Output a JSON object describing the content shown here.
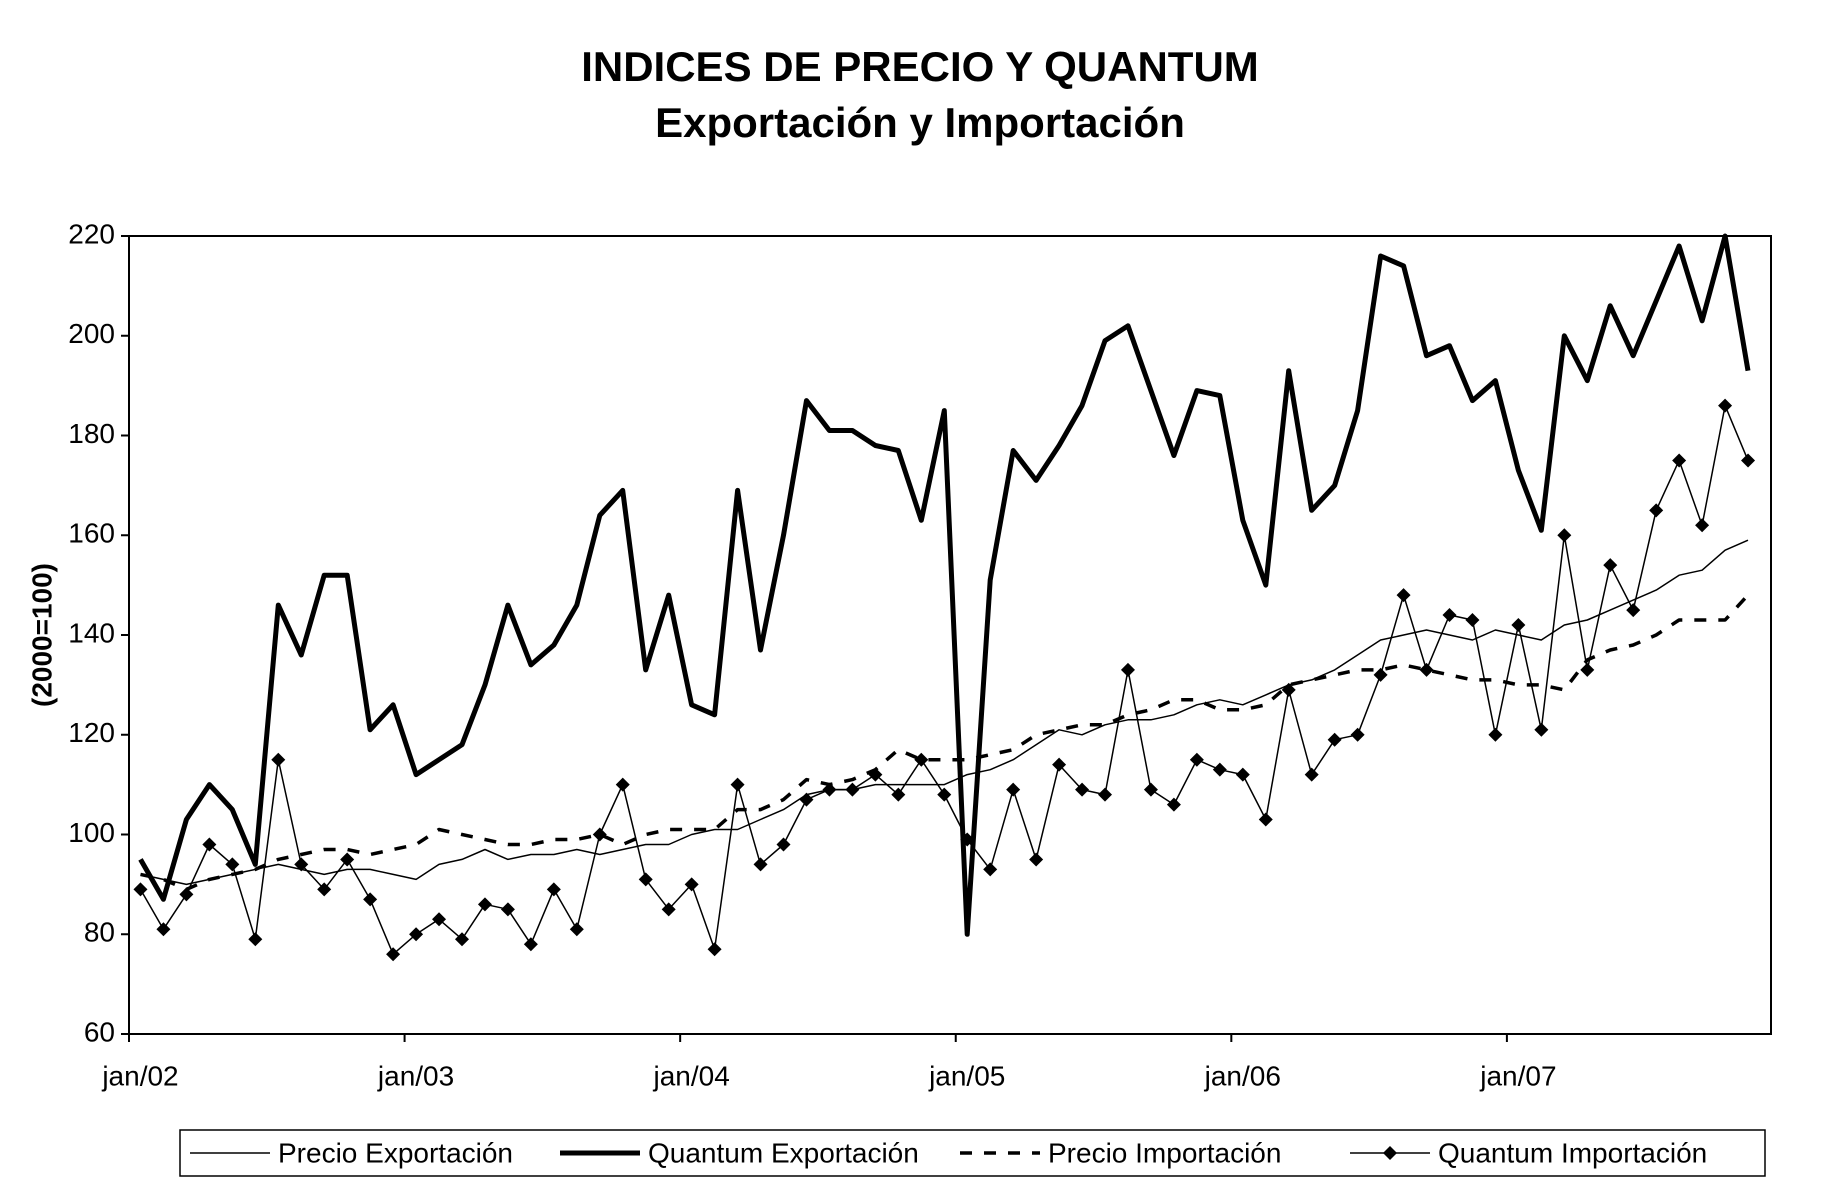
{
  "chart_data": {
    "type": "line",
    "title": "INDICES DE PRECIO Y QUANTUM",
    "subtitle": "Exportación y Importación",
    "y_label": "(2000=100)",
    "categories": [
      "jan/02",
      null,
      null,
      null,
      null,
      null,
      null,
      null,
      null,
      null,
      null,
      null,
      "jan/03",
      null,
      null,
      null,
      null,
      null,
      null,
      null,
      null,
      null,
      null,
      null,
      "jan/04",
      null,
      null,
      null,
      null,
      null,
      null,
      null,
      null,
      null,
      null,
      null,
      "jan/05",
      null,
      null,
      null,
      null,
      null,
      null,
      null,
      null,
      null,
      null,
      null,
      "jan/06",
      null,
      null,
      null,
      null,
      null,
      null,
      null,
      null,
      null,
      null,
      null,
      "jan/07",
      null,
      null,
      null,
      null,
      null,
      null,
      null,
      null,
      null,
      null
    ],
    "ylim": [
      60,
      220
    ],
    "yticks": [
      60,
      80,
      100,
      120,
      140,
      160,
      180,
      200,
      220
    ],
    "legend": "bottom",
    "series": [
      {
        "name": "Precio Exportación",
        "color": "#000000",
        "width": 1.5,
        "dash": false,
        "marker": "none",
        "values": [
          92,
          91,
          90,
          91,
          92,
          93,
          94,
          93,
          92,
          93,
          93,
          92,
          91,
          94,
          95,
          97,
          95,
          96,
          96,
          97,
          96,
          97,
          98,
          98,
          100,
          101,
          101,
          103,
          105,
          108,
          109,
          109,
          110,
          110,
          110,
          110,
          112,
          113,
          115,
          118,
          121,
          120,
          122,
          123,
          123,
          124,
          126,
          127,
          126,
          128,
          130,
          131,
          133,
          136,
          139,
          140,
          141,
          140,
          139,
          141,
          140,
          139,
          142,
          143,
          145,
          147,
          149,
          152,
          153,
          157,
          159
        ]
      },
      {
        "name": "Quantum Exportación",
        "color": "#000000",
        "width": 5,
        "dash": false,
        "marker": "none",
        "values": [
          95,
          87,
          103,
          110,
          105,
          94,
          146,
          136,
          152,
          152,
          121,
          126,
          112,
          115,
          118,
          130,
          146,
          134,
          138,
          146,
          164,
          169,
          133,
          148,
          126,
          124,
          169,
          137,
          160,
          187,
          181,
          181,
          178,
          177,
          163,
          185,
          80,
          151,
          177,
          171,
          178,
          186,
          199,
          202,
          189,
          176,
          189,
          188,
          163,
          150,
          193,
          165,
          170,
          185,
          216,
          214,
          196,
          198,
          187,
          191,
          173,
          161,
          200,
          191,
          206,
          196,
          207,
          218,
          203,
          220,
          193
        ]
      },
      {
        "name": "Precio Importación",
        "color": "#000000",
        "width": 3.5,
        "dash": true,
        "marker": "none",
        "values": [
          92,
          91,
          89,
          91,
          92,
          93,
          95,
          96,
          97,
          97,
          96,
          97,
          98,
          101,
          100,
          99,
          98,
          98,
          99,
          99,
          100,
          98,
          100,
          101,
          101,
          101,
          105,
          105,
          107,
          111,
          110,
          111,
          113,
          117,
          115,
          115,
          115,
          116,
          117,
          120,
          121,
          122,
          122,
          124,
          125,
          127,
          127,
          125,
          125,
          126,
          130,
          131,
          132,
          133,
          133,
          134,
          133,
          132,
          131,
          131,
          130,
          130,
          129,
          135,
          137,
          138,
          140,
          143,
          143,
          143,
          148
        ]
      },
      {
        "name": "Quantum Importación",
        "color": "#000000",
        "width": 1.5,
        "dash": false,
        "marker": "diamond",
        "values": [
          89,
          81,
          88,
          98,
          94,
          79,
          115,
          94,
          89,
          95,
          87,
          76,
          80,
          83,
          79,
          86,
          85,
          78,
          89,
          81,
          100,
          110,
          91,
          85,
          90,
          77,
          110,
          94,
          98,
          107,
          109,
          109,
          112,
          108,
          115,
          108,
          99,
          93,
          109,
          95,
          114,
          109,
          108,
          133,
          109,
          106,
          115,
          113,
          112,
          103,
          129,
          112,
          119,
          120,
          132,
          148,
          133,
          144,
          143,
          120,
          142,
          121,
          160,
          133,
          154,
          145,
          165,
          175,
          162,
          186,
          175
        ]
      }
    ]
  }
}
